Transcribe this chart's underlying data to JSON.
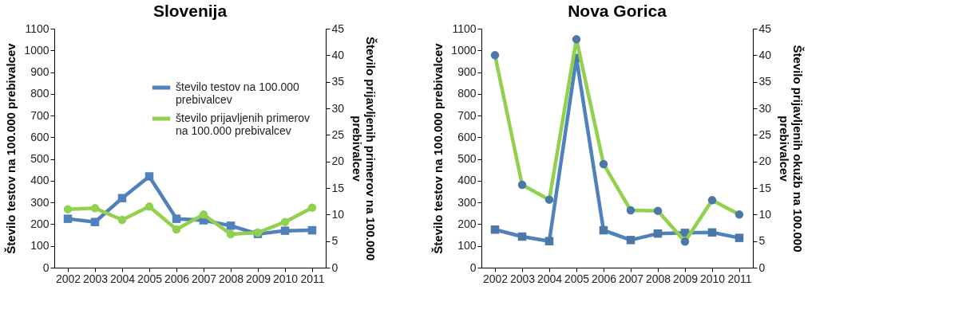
{
  "chart_data": [
    {
      "type": "line",
      "title": "Slovenija",
      "categories": [
        "2002",
        "2003",
        "2004",
        "2005",
        "2006",
        "2007",
        "2008",
        "2009",
        "2010",
        "2011"
      ],
      "ylabel": "Število testov na 100.000 prebivalcev",
      "y2label": "Število prijavljenih primerov na 100.000 prebivalcev",
      "ylim": [
        0,
        1100
      ],
      "yticks": [
        0,
        100,
        200,
        300,
        400,
        500,
        600,
        700,
        800,
        900,
        1000,
        1100
      ],
      "y2lim": [
        0,
        45
      ],
      "y2ticks": [
        0,
        5,
        10,
        15,
        20,
        25,
        30,
        35,
        40,
        45
      ],
      "legend": "top right",
      "grid": false,
      "series": [
        {
          "name": "število testov na 100.000 prebivalcev",
          "color": "#4f81bd",
          "marker": "square",
          "values": [
            225,
            210,
            320,
            420,
            225,
            218,
            193,
            155,
            170,
            172
          ]
        },
        {
          "name": "število prijavljenih primerov na 100.000 prebivalcev",
          "color": "#92d050",
          "marker": "circle",
          "axis": "y2",
          "values": [
            11.0,
            11.2,
            9.0,
            11.5,
            7.2,
            10.0,
            6.3,
            6.6,
            8.6,
            11.3
          ]
        }
      ]
    },
    {
      "type": "line",
      "title": "Nova Gorica",
      "categories": [
        "2002",
        "2003",
        "2004",
        "2005",
        "2006",
        "2007",
        "2008",
        "2009",
        "2010",
        "2011"
      ],
      "ylabel": "Število testov na 100.000 prebivalcev",
      "y2label": "Število prijavljenih okužb na 100.000 prebivalcev",
      "ylim": [
        0,
        1100
      ],
      "yticks": [
        0,
        100,
        200,
        300,
        400,
        500,
        600,
        700,
        800,
        900,
        1000,
        1100
      ],
      "y2lim": [
        0,
        45
      ],
      "y2ticks": [
        0,
        5,
        10,
        15,
        20,
        25,
        30,
        35,
        40,
        45
      ],
      "grid": false,
      "series": [
        {
          "color": "#4f81bd",
          "marker": "square",
          "values": [
            175,
            143,
            122,
            965,
            172,
            127,
            157,
            160,
            162,
            137
          ]
        },
        {
          "color": "#92d050",
          "marker": "circle",
          "axis": "y2",
          "values": [
            40.0,
            15.6,
            12.8,
            43.0,
            19.5,
            10.8,
            10.7,
            4.9,
            12.7,
            10.0
          ]
        }
      ]
    }
  ]
}
